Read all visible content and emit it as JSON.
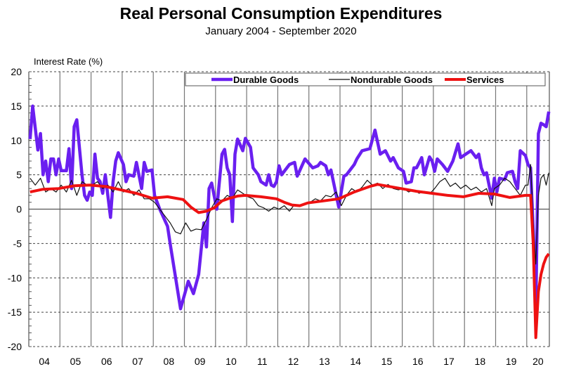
{
  "chart_data": {
    "type": "line",
    "title": "Real Personal Consumption Expenditures",
    "subtitle": "January 2004 - September 2020",
    "ylabel": "Interest Rate (%)",
    "ylim": [
      -20,
      20
    ],
    "yticks": [
      20,
      15,
      10,
      5,
      0,
      -5,
      -10,
      -15,
      -20
    ],
    "xlim": [
      "2004-01",
      "2020-09"
    ],
    "xtick_labels": [
      "04",
      "05",
      "06",
      "07",
      "08",
      "09",
      "10",
      "11",
      "12",
      "13",
      "14",
      "15",
      "16",
      "17",
      "18",
      "19",
      "20"
    ],
    "grid": true,
    "legend_position": "top",
    "series": [
      {
        "name": "Durable Goods",
        "color": "#6a1ff0",
        "points": [
          [
            "2004-01",
            10.2
          ],
          [
            "2004-02",
            15
          ],
          [
            "2004-04",
            8.6
          ],
          [
            "2004-05",
            11
          ],
          [
            "2004-06",
            5
          ],
          [
            "2004-07",
            7
          ],
          [
            "2004-08",
            4
          ],
          [
            "2004-09",
            7.3
          ],
          [
            "2004-10",
            7.3
          ],
          [
            "2004-11",
            5
          ],
          [
            "2004-12",
            7.3
          ],
          [
            "2005-01",
            5.6
          ],
          [
            "2005-03",
            5.6
          ],
          [
            "2005-04",
            8.8
          ],
          [
            "2005-05",
            3
          ],
          [
            "2005-06",
            12
          ],
          [
            "2005-07",
            13
          ],
          [
            "2005-09",
            5
          ],
          [
            "2005-10",
            2
          ],
          [
            "2005-11",
            1.3
          ],
          [
            "2005-12",
            2.5
          ],
          [
            "2006-01",
            2
          ],
          [
            "2006-02",
            8
          ],
          [
            "2006-03",
            4.5
          ],
          [
            "2006-04",
            4
          ],
          [
            "2006-05",
            2.3
          ],
          [
            "2006-06",
            5
          ],
          [
            "2006-08",
            -1.2
          ],
          [
            "2006-09",
            4
          ],
          [
            "2006-10",
            7
          ],
          [
            "2006-11",
            8.2
          ],
          [
            "2007-01",
            6.5
          ],
          [
            "2007-02",
            4
          ],
          [
            "2007-03",
            5
          ],
          [
            "2007-05",
            4.8
          ],
          [
            "2007-06",
            6.8
          ],
          [
            "2007-08",
            3
          ],
          [
            "2007-09",
            6.8
          ],
          [
            "2007-10",
            5.5
          ],
          [
            "2007-12",
            5.7
          ],
          [
            "2008-01",
            2
          ],
          [
            "2008-03",
            0
          ],
          [
            "2008-06",
            -2.5
          ],
          [
            "2008-07",
            -5
          ],
          [
            "2008-11",
            -14.5
          ],
          [
            "2009-02",
            -10.5
          ],
          [
            "2009-04",
            -12.3
          ],
          [
            "2009-06",
            -9.5
          ],
          [
            "2009-08",
            -2
          ],
          [
            "2009-09",
            -5.5
          ],
          [
            "2009-10",
            3
          ],
          [
            "2009-11",
            3.8
          ],
          [
            "2010-01",
            0
          ],
          [
            "2010-03",
            8
          ],
          [
            "2010-04",
            8.7
          ],
          [
            "2010-05",
            6
          ],
          [
            "2010-06",
            5
          ],
          [
            "2010-07",
            -1.8
          ],
          [
            "2010-08",
            8
          ],
          [
            "2010-09",
            10.2
          ],
          [
            "2010-11",
            8.5
          ],
          [
            "2010-12",
            10.3
          ],
          [
            "2011-02",
            9
          ],
          [
            "2011-03",
            6
          ],
          [
            "2011-05",
            5
          ],
          [
            "2011-06",
            4
          ],
          [
            "2011-08",
            3.5
          ],
          [
            "2011-09",
            5
          ],
          [
            "2011-10",
            3.5
          ],
          [
            "2011-11",
            3.3
          ],
          [
            "2011-12",
            4
          ],
          [
            "2012-01",
            6.3
          ],
          [
            "2012-02",
            5
          ],
          [
            "2012-05",
            6.5
          ],
          [
            "2012-07",
            6.8
          ],
          [
            "2012-08",
            4.8
          ],
          [
            "2012-11",
            7.3
          ],
          [
            "2013-02",
            6
          ],
          [
            "2013-04",
            6.3
          ],
          [
            "2013-05",
            6.8
          ],
          [
            "2013-07",
            6.3
          ],
          [
            "2013-08",
            5
          ],
          [
            "2013-09",
            5.7
          ],
          [
            "2013-12",
            0.3
          ],
          [
            "2014-02",
            4.8
          ],
          [
            "2014-03",
            5
          ],
          [
            "2014-06",
            6.5
          ],
          [
            "2014-07",
            7.3
          ],
          [
            "2014-09",
            8.5
          ],
          [
            "2014-12",
            8.8
          ],
          [
            "2015-02",
            11.5
          ],
          [
            "2015-04",
            8
          ],
          [
            "2015-06",
            8.5
          ],
          [
            "2015-08",
            7
          ],
          [
            "2015-09",
            7.5
          ],
          [
            "2015-11",
            6
          ],
          [
            "2016-01",
            5.5
          ],
          [
            "2016-02",
            3.8
          ],
          [
            "2016-04",
            4
          ],
          [
            "2016-05",
            6
          ],
          [
            "2016-06",
            6
          ],
          [
            "2016-08",
            7.5
          ],
          [
            "2016-09",
            5
          ],
          [
            "2016-11",
            7.6
          ],
          [
            "2016-12",
            7
          ],
          [
            "2017-01",
            5.5
          ],
          [
            "2017-02",
            7.3
          ],
          [
            "2017-04",
            6.5
          ],
          [
            "2017-06",
            5.5
          ],
          [
            "2017-08",
            7
          ],
          [
            "2017-10",
            9.5
          ],
          [
            "2017-11",
            7.5
          ],
          [
            "2018-01",
            8
          ],
          [
            "2018-03",
            8.5
          ],
          [
            "2018-05",
            7.5
          ],
          [
            "2018-06",
            8
          ],
          [
            "2018-07",
            6
          ],
          [
            "2018-08",
            5
          ],
          [
            "2018-09",
            5.3
          ],
          [
            "2018-11",
            1.6
          ],
          [
            "2018-12",
            4.5
          ],
          [
            "2019-01",
            2.5
          ],
          [
            "2019-02",
            4.5
          ],
          [
            "2019-04",
            4.3
          ],
          [
            "2019-05",
            5.3
          ],
          [
            "2019-07",
            5.5
          ],
          [
            "2019-08",
            4
          ],
          [
            "2019-09",
            3
          ],
          [
            "2019-10",
            8.5
          ],
          [
            "2019-12",
            7.8
          ],
          [
            "2020-01",
            6.5
          ],
          [
            "2020-02",
            6
          ],
          [
            "2020-03",
            -3
          ],
          [
            "2020-04",
            -15
          ],
          [
            "2020-05",
            11
          ],
          [
            "2020-06",
            12.5
          ],
          [
            "2020-07",
            12.3
          ],
          [
            "2020-08",
            12
          ],
          [
            "2020-09",
            14.2
          ]
        ]
      },
      {
        "name": "Nondurable Goods",
        "color": "#111111",
        "points": [
          [
            "2004-01",
            4.5
          ],
          [
            "2004-03",
            3.5
          ],
          [
            "2004-05",
            4.5
          ],
          [
            "2004-07",
            2.5
          ],
          [
            "2004-09",
            3
          ],
          [
            "2004-11",
            2.5
          ],
          [
            "2005-01",
            3.5
          ],
          [
            "2005-03",
            2.5
          ],
          [
            "2005-05",
            4.2
          ],
          [
            "2005-07",
            2
          ],
          [
            "2005-09",
            4
          ],
          [
            "2005-11",
            3.5
          ],
          [
            "2006-01",
            3.5
          ],
          [
            "2006-03",
            4
          ],
          [
            "2006-05",
            3
          ],
          [
            "2006-07",
            3.5
          ],
          [
            "2006-09",
            2.5
          ],
          [
            "2006-11",
            4
          ],
          [
            "2007-01",
            2.5
          ],
          [
            "2007-03",
            3
          ],
          [
            "2007-05",
            2
          ],
          [
            "2007-07",
            2.8
          ],
          [
            "2007-09",
            1.5
          ],
          [
            "2007-11",
            1.5
          ],
          [
            "2008-01",
            1
          ],
          [
            "2008-03",
            0
          ],
          [
            "2008-05",
            -1
          ],
          [
            "2008-07",
            -2
          ],
          [
            "2008-09",
            -3.3
          ],
          [
            "2008-11",
            -3.6
          ],
          [
            "2009-01",
            -2
          ],
          [
            "2009-03",
            -3.2
          ],
          [
            "2009-05",
            -2.9
          ],
          [
            "2009-07",
            -3
          ],
          [
            "2009-09",
            -1.5
          ],
          [
            "2009-11",
            0.2
          ],
          [
            "2010-01",
            1.5
          ],
          [
            "2010-03",
            1.2
          ],
          [
            "2010-05",
            2
          ],
          [
            "2010-07",
            1.6
          ],
          [
            "2010-09",
            2.8
          ],
          [
            "2010-11",
            2.3
          ],
          [
            "2011-01",
            1.8
          ],
          [
            "2011-03",
            1.5
          ],
          [
            "2011-05",
            0.5
          ],
          [
            "2011-07",
            0.2
          ],
          [
            "2011-09",
            -0.3
          ],
          [
            "2011-11",
            0.3
          ],
          [
            "2012-01",
            0
          ],
          [
            "2012-03",
            0.5
          ],
          [
            "2012-05",
            -0.3
          ],
          [
            "2012-07",
            0.7
          ],
          [
            "2012-09",
            0.4
          ],
          [
            "2012-11",
            0.8
          ],
          [
            "2013-01",
            1
          ],
          [
            "2013-03",
            1.5
          ],
          [
            "2013-05",
            1.2
          ],
          [
            "2013-07",
            2
          ],
          [
            "2013-09",
            1.8
          ],
          [
            "2013-11",
            2.5
          ],
          [
            "2014-01",
            0.5
          ],
          [
            "2014-03",
            2
          ],
          [
            "2014-05",
            3
          ],
          [
            "2014-07",
            2.5
          ],
          [
            "2014-09",
            3.2
          ],
          [
            "2014-11",
            4.2
          ],
          [
            "2015-01",
            3.5
          ],
          [
            "2015-03",
            3.8
          ],
          [
            "2015-05",
            3
          ],
          [
            "2015-07",
            3.6
          ],
          [
            "2015-09",
            3
          ],
          [
            "2015-11",
            2.8
          ],
          [
            "2016-01",
            3
          ],
          [
            "2016-03",
            2.5
          ],
          [
            "2016-05",
            2.8
          ],
          [
            "2016-07",
            2.3
          ],
          [
            "2016-09",
            2.6
          ],
          [
            "2016-11",
            2.2
          ],
          [
            "2017-01",
            3
          ],
          [
            "2017-03",
            4
          ],
          [
            "2017-05",
            4.5
          ],
          [
            "2017-07",
            3.3
          ],
          [
            "2017-09",
            3.8
          ],
          [
            "2017-11",
            3
          ],
          [
            "2018-01",
            3.5
          ],
          [
            "2018-03",
            2.8
          ],
          [
            "2018-05",
            3.2
          ],
          [
            "2018-07",
            2.5
          ],
          [
            "2018-09",
            3
          ],
          [
            "2018-11",
            0.5
          ],
          [
            "2018-12",
            3
          ],
          [
            "2019-02",
            3.5
          ],
          [
            "2019-04",
            4.5
          ],
          [
            "2019-06",
            4
          ],
          [
            "2019-08",
            3
          ],
          [
            "2019-10",
            2
          ],
          [
            "2019-12",
            3.5
          ],
          [
            "2020-01",
            3.5
          ],
          [
            "2020-02",
            6.5
          ],
          [
            "2020-03",
            -2
          ],
          [
            "2020-04",
            -8
          ],
          [
            "2020-05",
            2
          ],
          [
            "2020-06",
            4.5
          ],
          [
            "2020-07",
            5
          ],
          [
            "2020-08",
            3.5
          ],
          [
            "2020-09",
            5.3
          ]
        ]
      },
      {
        "name": "Services",
        "color": "#ee1111",
        "points": [
          [
            "2004-01",
            2.5
          ],
          [
            "2004-06",
            2.9
          ],
          [
            "2004-12",
            3
          ],
          [
            "2005-06",
            3.4
          ],
          [
            "2005-12",
            3.5
          ],
          [
            "2006-06",
            3.3
          ],
          [
            "2006-12",
            2.8
          ],
          [
            "2007-06",
            2.3
          ],
          [
            "2007-12",
            1.6
          ],
          [
            "2008-06",
            1.8
          ],
          [
            "2008-12",
            1.4
          ],
          [
            "2009-03",
            0.3
          ],
          [
            "2009-06",
            -0.5
          ],
          [
            "2009-09",
            -0.3
          ],
          [
            "2009-12",
            0.2
          ],
          [
            "2010-03",
            1.2
          ],
          [
            "2010-06",
            1.6
          ],
          [
            "2010-09",
            1.9
          ],
          [
            "2010-12",
            2
          ],
          [
            "2011-06",
            1.8
          ],
          [
            "2011-12",
            1.5
          ],
          [
            "2012-03",
            1
          ],
          [
            "2012-06",
            0.6
          ],
          [
            "2012-09",
            0.5
          ],
          [
            "2012-12",
            0.9
          ],
          [
            "2013-06",
            1.2
          ],
          [
            "2013-12",
            1.5
          ],
          [
            "2014-06",
            2.5
          ],
          [
            "2014-12",
            3.3
          ],
          [
            "2015-03",
            3.6
          ],
          [
            "2015-06",
            3.4
          ],
          [
            "2015-12",
            3
          ],
          [
            "2016-06",
            2.6
          ],
          [
            "2016-12",
            2.3
          ],
          [
            "2017-06",
            2
          ],
          [
            "2017-12",
            1.8
          ],
          [
            "2018-06",
            2.3
          ],
          [
            "2018-12",
            2.2
          ],
          [
            "2019-06",
            1.7
          ],
          [
            "2019-12",
            2
          ],
          [
            "2020-02",
            2
          ],
          [
            "2020-03",
            -5
          ],
          [
            "2020-04",
            -18.7
          ],
          [
            "2020-05",
            -12
          ],
          [
            "2020-06",
            -9.5
          ],
          [
            "2020-07",
            -8
          ],
          [
            "2020-08",
            -7
          ],
          [
            "2020-09",
            -6.5
          ]
        ]
      }
    ]
  }
}
